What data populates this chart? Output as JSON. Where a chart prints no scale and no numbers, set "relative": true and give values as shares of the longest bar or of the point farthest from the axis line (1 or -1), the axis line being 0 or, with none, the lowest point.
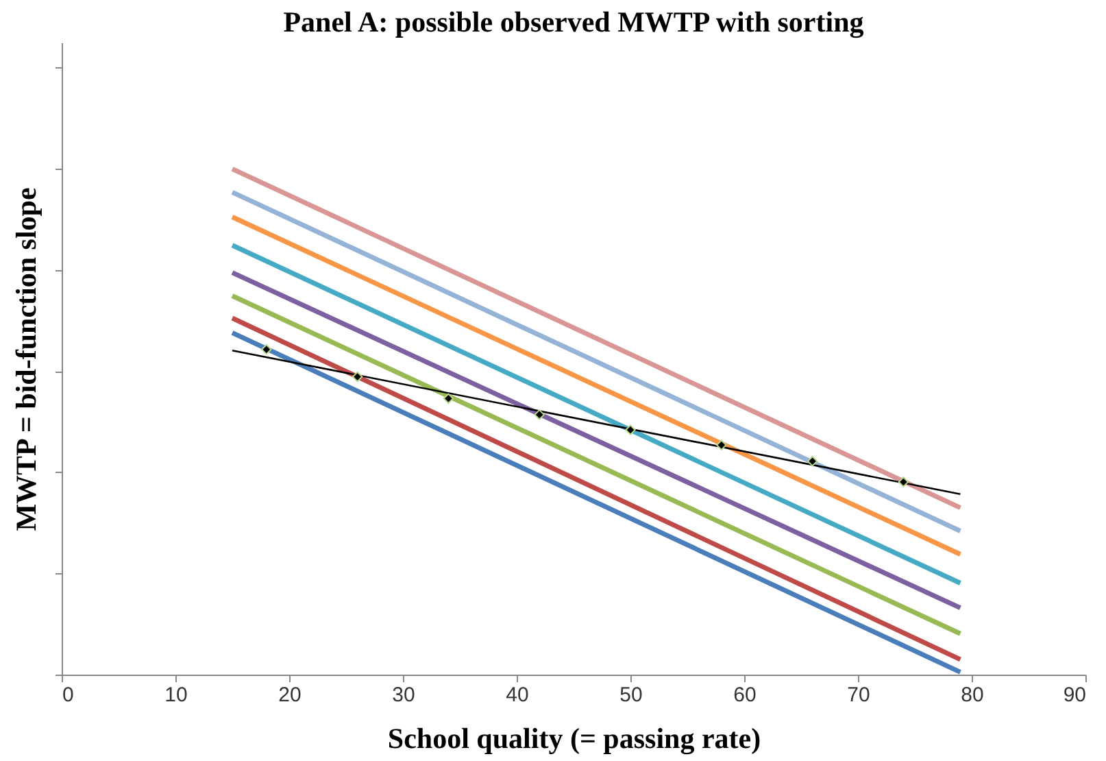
{
  "chart_data": {
    "type": "line",
    "title": "Panel A: possible observed MWTP with sorting",
    "xlabel": "School quality (= passing rate)",
    "ylabel": "MWTP = bid-function slope",
    "relative": true,
    "xlim": [
      0,
      90
    ],
    "xticks": [
      0,
      10,
      20,
      30,
      40,
      50,
      60,
      70,
      80,
      90
    ],
    "grid": false,
    "marker": "none",
    "line_style": "solid",
    "series": [
      {
        "color": "#4a7ebb",
        "x": [
          15,
          79
        ],
        "values": [
          0.676,
          0.005
        ]
      },
      {
        "color": "#be4b48",
        "x": [
          15,
          79
        ],
        "values": [
          0.705,
          0.03
        ]
      },
      {
        "color": "#98b954",
        "x": [
          15,
          79
        ],
        "values": [
          0.749,
          0.081
        ]
      },
      {
        "color": "#7d60a0",
        "x": [
          15,
          79
        ],
        "values": [
          0.795,
          0.132
        ]
      },
      {
        "color": "#46aac5",
        "x": [
          15,
          79
        ],
        "values": [
          0.849,
          0.181
        ]
      },
      {
        "color": "#f79646",
        "x": [
          15,
          79
        ],
        "values": [
          0.905,
          0.238
        ]
      },
      {
        "color": "#95b3d7",
        "x": [
          15,
          79
        ],
        "values": [
          0.954,
          0.284
        ]
      },
      {
        "color": "#d99694",
        "x": [
          15,
          79
        ],
        "values": [
          1.0,
          0.33
        ]
      },
      {
        "color": "#000000",
        "x": [
          15,
          79
        ],
        "values": [
          0.641,
          0.357
        ]
      },
      {
        "type": "scatter",
        "marker": "diamond",
        "color": "#000000",
        "x": [
          18,
          26,
          34,
          42,
          50,
          58,
          66,
          74
        ],
        "values": [
          0.643,
          0.589,
          0.546,
          0.514,
          0.484,
          0.454,
          0.422,
          0.381
        ]
      }
    ]
  }
}
